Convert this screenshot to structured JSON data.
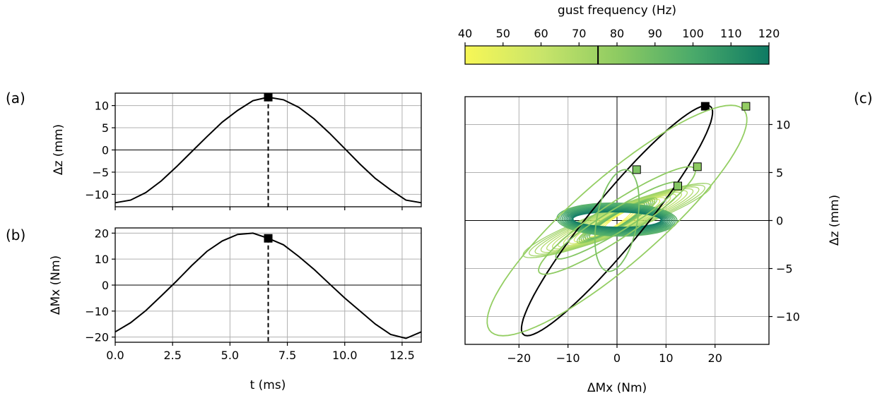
{
  "chart_data": [
    {
      "id": "a",
      "type": "line",
      "panel_label": "(a)",
      "ylabel": "Δz (mm)",
      "xlim": [
        0,
        13.333
      ],
      "ylim": [
        -12.8,
        12.8
      ],
      "xticks": [
        "0.0",
        "2.5",
        "5.0",
        "7.5",
        "10.0",
        "12.5"
      ],
      "xtick_values": [
        0,
        2.5,
        5,
        7.5,
        10,
        12.5
      ],
      "yticks": [
        "−10",
        "−5",
        "0",
        "5",
        "10"
      ],
      "ytick_values": [
        -10,
        -5,
        0,
        5,
        10
      ],
      "grid": true,
      "zero_line": true,
      "marker_time": 6.667,
      "marker_value": 11.9,
      "series": [
        {
          "x": [
            0,
            0.667,
            1.333,
            2,
            2.667,
            3.333,
            4,
            4.667,
            5.333,
            6,
            6.667,
            7.333,
            8,
            8.667,
            9.333,
            10,
            10.667,
            11.333,
            12,
            12.667,
            13.333
          ],
          "values": [
            -11.9,
            -11.3,
            -9.6,
            -7.0,
            -3.8,
            -0.4,
            3.0,
            6.3,
            8.9,
            11.1,
            11.9,
            11.3,
            9.6,
            7.0,
            3.8,
            0.3,
            -3.2,
            -6.4,
            -9.0,
            -11.3,
            -11.9
          ]
        }
      ]
    },
    {
      "id": "b",
      "type": "line",
      "panel_label": "(b)",
      "xlabel": "t (ms)",
      "ylabel": "ΔMx (Nm)",
      "xlim": [
        0,
        13.333
      ],
      "ylim": [
        -22,
        22
      ],
      "xticks": [
        "0.0",
        "2.5",
        "5.0",
        "7.5",
        "10.0",
        "12.5"
      ],
      "xtick_values": [
        0,
        2.5,
        5,
        7.5,
        10,
        12.5
      ],
      "yticks": [
        "−20",
        "−10",
        "0",
        "10",
        "20"
      ],
      "ytick_values": [
        -20,
        -10,
        0,
        10,
        20
      ],
      "grid": true,
      "zero_line": true,
      "marker_time": 6.667,
      "marker_value": 18.0,
      "series": [
        {
          "x": [
            0,
            0.667,
            1.333,
            2,
            2.667,
            3.333,
            4,
            4.667,
            5.333,
            6,
            6.667,
            7.333,
            8,
            8.667,
            9.333,
            10,
            10.667,
            11.333,
            12,
            12.667,
            13.333
          ],
          "values": [
            -18.0,
            -14.5,
            -9.8,
            -4.2,
            1.5,
            7.5,
            13.0,
            17.0,
            19.5,
            20.0,
            18.0,
            15.5,
            11.0,
            6.0,
            0.5,
            -5.0,
            -10.0,
            -15.0,
            -19.0,
            -20.5,
            -18.0
          ]
        }
      ]
    },
    {
      "id": "c",
      "type": "line",
      "panel_label": "(c)",
      "xlabel": "ΔMx (Nm)",
      "ylabel": "Δz (mm)",
      "xlim": [
        -31,
        31
      ],
      "ylim": [
        -12.9,
        12.9
      ],
      "xticks": [
        "−20",
        "−10",
        "0",
        "10",
        "20"
      ],
      "xtick_values": [
        -20,
        -10,
        0,
        10,
        20
      ],
      "yticks": [
        "−10",
        "−5",
        "0",
        "5",
        "10"
      ],
      "ytick_values": [
        -10,
        -5,
        0,
        5,
        10
      ],
      "grid": true,
      "zero_lines": true,
      "series": [
        {
          "frequency": 75,
          "amp_x": 19.5,
          "amp_y": 12.0,
          "phase": 0.35,
          "end_x": 18.0,
          "end_y": 11.9
        },
        {
          "frequency": 78,
          "amp_x": 26.5,
          "amp_y": 12.0,
          "phase": 0.5,
          "end_x": 26.3,
          "end_y": 11.9
        },
        {
          "frequency": 80,
          "amp_x": 16.0,
          "amp_y": 5.6,
          "phase": 0.4,
          "end_x": 16.4,
          "end_y": 5.6
        },
        {
          "frequency": 83,
          "amp_x": 12.5,
          "amp_y": 4.0,
          "phase": 0.35,
          "end_x": 12.4,
          "end_y": 3.6
        },
        {
          "frequency": 85,
          "amp_x": 4.5,
          "amp_y": 5.3,
          "phase": 1.2,
          "end_x": 4.0,
          "end_y": 5.3
        }
      ],
      "colorbar": {
        "label": "gust frequency (Hz)",
        "min": 40,
        "max": 120,
        "ticks": [
          "40",
          "50",
          "60",
          "70",
          "80",
          "90",
          "100",
          "110",
          "120"
        ],
        "tick_values": [
          40,
          50,
          60,
          70,
          80,
          90,
          100,
          110,
          120
        ],
        "colors": [
          "#f7f756",
          "#c9e56a",
          "#8ecb62",
          "#4aaa6a",
          "#0e7a63"
        ],
        "marker_value": 75
      }
    }
  ]
}
